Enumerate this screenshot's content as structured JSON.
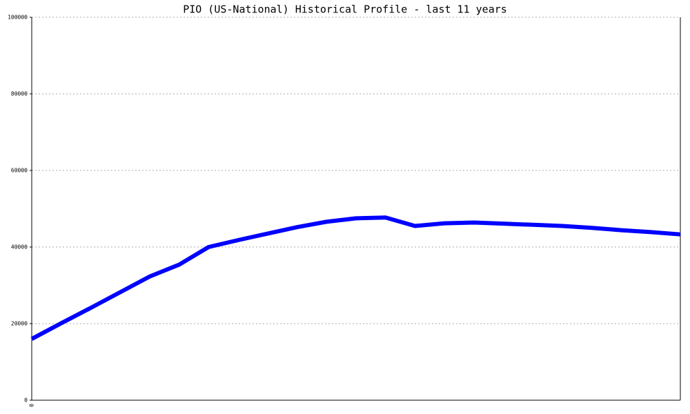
{
  "chart_data": {
    "type": "line",
    "title": "PIO (US-National) Historical Profile - last 11 years",
    "categories": [
      "0",
      null,
      null,
      null,
      null,
      null,
      null,
      null,
      null,
      null,
      null,
      null,
      null,
      null,
      null,
      null,
      null,
      null,
      null,
      null,
      null,
      null,
      null
    ],
    "series": [
      {
        "name": "PIO",
        "color": "#0000ff",
        "values": [
          16000,
          20100,
          24100,
          28200,
          32300,
          35400,
          40000,
          41800,
          43500,
          45200,
          46600,
          47500,
          47700,
          45500,
          46200,
          46400,
          46100,
          45800,
          45500,
          45000,
          44400,
          43900,
          43300
        ]
      }
    ],
    "ylim": [
      0,
      100000
    ],
    "yticks": [
      0,
      20000,
      40000,
      60000,
      80000,
      100000
    ],
    "grid": true
  }
}
